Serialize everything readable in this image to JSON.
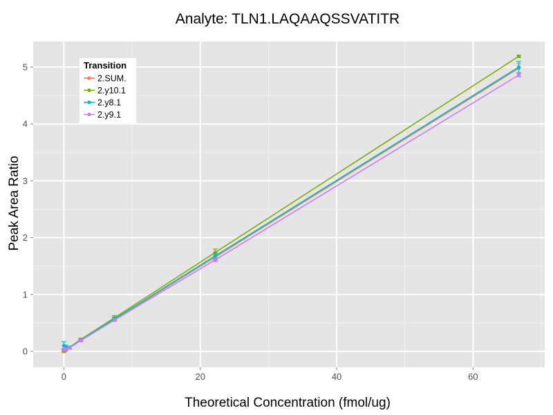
{
  "chart_data": {
    "type": "line",
    "title": "Analyte: TLN1.LAQAAQSSVATITR",
    "xlabel": "Theoretical Concentration (fmol/ug)",
    "ylabel": "Peak Area Ratio",
    "xlim": [
      -4.5,
      70.5
    ],
    "ylim": [
      -0.28,
      5.45
    ],
    "x_ticks": [
      0,
      20,
      40,
      60
    ],
    "x_tick_labels": [
      "0",
      "20",
      "40",
      "60"
    ],
    "y_ticks": [
      0,
      1,
      2,
      3,
      4,
      5
    ],
    "y_tick_labels": [
      "0",
      "1",
      "2",
      "3",
      "4",
      "5"
    ],
    "grid": true,
    "legend": {
      "title": "Transition",
      "position": "top-left",
      "entries": [
        "2.SUM.",
        "2.y10.1",
        "2.y8.1",
        "2.y9.1"
      ]
    },
    "x": [
      0,
      0.25,
      0.82,
      2.47,
      7.41,
      22.2,
      66.7
    ],
    "series": [
      {
        "name": "2.SUM.",
        "color": "#F8766D",
        "values": [
          0.0,
          0.02,
          0.06,
          0.19,
          0.56,
          1.66,
          4.98
        ],
        "errors": [
          0.02,
          0.02,
          0.02,
          0.02,
          0.03,
          0.05,
          0.08
        ]
      },
      {
        "name": "2.y10.1",
        "color": "#7CAE00",
        "values": [
          0.02,
          0.03,
          0.07,
          0.21,
          0.59,
          1.74,
          5.19
        ],
        "errors": [
          0.03,
          0.02,
          0.02,
          0.02,
          0.04,
          0.06,
          0.02
        ]
      },
      {
        "name": "2.y8.1",
        "color": "#00BFC4",
        "values": [
          0.1,
          0.08,
          0.07,
          0.2,
          0.57,
          1.68,
          5.0
        ],
        "errors": [
          0.07,
          0.03,
          0.02,
          0.02,
          0.03,
          0.05,
          0.1
        ]
      },
      {
        "name": "2.y9.1",
        "color": "#C77CFF",
        "values": [
          0.03,
          0.04,
          0.06,
          0.19,
          0.55,
          1.61,
          4.86
        ],
        "errors": [
          0.02,
          0.02,
          0.02,
          0.02,
          0.02,
          0.03,
          0.03
        ]
      }
    ]
  }
}
